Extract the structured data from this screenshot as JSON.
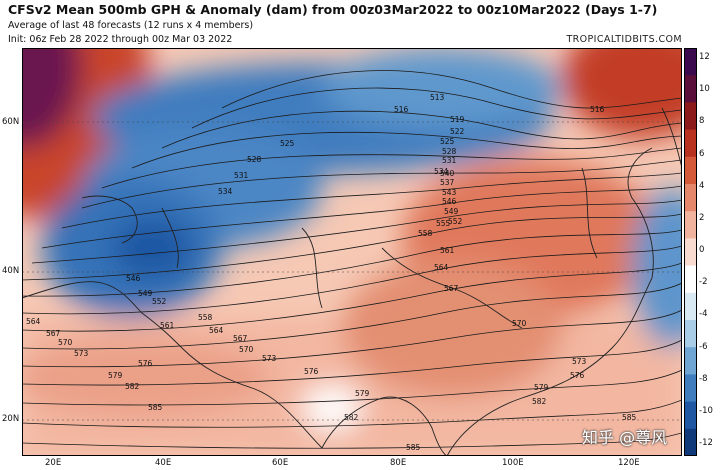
{
  "header": {
    "title": "CFSv2 Mean 500mb GPH & Anomaly (dam) from 00z03Mar2022 to 00z10Mar2022 (Days 1-7)",
    "subtitle_1": "Average of last 48 forecasts (12 runs x 4 members)",
    "subtitle_2": "Init: 06z Feb 28 2022 through 00z Mar 03 2022",
    "credit": "TROPICALTIDBITS.COM"
  },
  "map": {
    "region": "Asia",
    "lon_labels": [
      "20E",
      "40E",
      "60E",
      "80E",
      "100E",
      "120E"
    ],
    "lat_labels": [
      "60N",
      "40N",
      "20N"
    ],
    "contour_labels": [
      "513",
      "516",
      "516",
      "519",
      "522",
      "525",
      "525",
      "528",
      "528",
      "531",
      "531",
      "534",
      "534",
      "537",
      "540",
      "543",
      "546",
      "546",
      "549",
      "549",
      "552",
      "552",
      "555",
      "558",
      "558",
      "561",
      "561",
      "564",
      "564",
      "564",
      "567",
      "567",
      "567",
      "570",
      "570",
      "570",
      "573",
      "573",
      "573",
      "576",
      "576",
      "576",
      "579",
      "579",
      "579",
      "582",
      "582",
      "582",
      "585",
      "585",
      "585"
    ]
  },
  "colorbar": {
    "labels": [
      "12",
      "10",
      "8",
      "6",
      "4",
      "2",
      "0",
      "-2",
      "-4",
      "-6",
      "-8",
      "-10",
      "-12"
    ],
    "colors": [
      "#3b0a4e",
      "#5a0f3a",
      "#8c1a1a",
      "#b8321f",
      "#d45a3a",
      "#e5876b",
      "#f1b39e",
      "#f9dccf",
      "#ffffff",
      "#d9e9f3",
      "#a9cde6",
      "#6fa6d3",
      "#3f7dbf",
      "#1f57a3",
      "#103a7a"
    ]
  },
  "watermark": "知乎 @尊风"
}
